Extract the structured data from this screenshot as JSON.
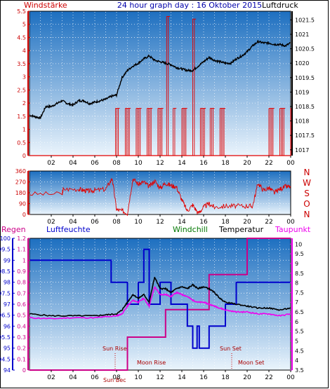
{
  "header": {
    "left_label": "Windstärke",
    "title": "24 hour graph day : 16 Oktober 2015",
    "right_label": "Luftdruck"
  },
  "compass": [
    "N",
    "W",
    "S",
    "O",
    "N"
  ],
  "legend": {
    "regen": "Regen",
    "luftfeuchte": "Luftfeuchte",
    "windchill": "Windchill",
    "temperatur": "Temperatur",
    "taupunkt": "Taupunkt"
  },
  "annotations": {
    "sun_rise": "Sun Rise",
    "moon_rise": "Moon Rise",
    "sun_set": "Sun Set",
    "moon_set": "Moon Set",
    "sun_bec": "Sun Bec"
  },
  "colors": {
    "wind": "#e00000",
    "pressure": "#000000",
    "humidity": "#0000cc",
    "dewpoint": "#ee00ee",
    "windchill": "#007700",
    "rain": "#cc0088",
    "grid_dots": "#ffffff",
    "axis_left_top": "#cc0000",
    "axis_right_top": "#000000",
    "bg_top": "#2070c0",
    "bg_bottom": "#e6f2fb"
  },
  "chart_data": [
    {
      "type": "line",
      "name": "wind-pressure",
      "x_ticks": [
        "02",
        "04",
        "06",
        "08",
        "10",
        "12",
        "14",
        "16",
        "18",
        "20",
        "22",
        "00"
      ],
      "xlim": [
        0,
        24
      ],
      "y_left_ticks": [
        "0",
        "0.5",
        "1",
        "1.5",
        "2",
        "2.5",
        "3",
        "3.5",
        "4",
        "4.5",
        "5",
        "5.5"
      ],
      "y_left_lim": [
        0,
        5.5
      ],
      "y_right_ticks": [
        "1017",
        "1017.5",
        "1018",
        "1018.5",
        "1019",
        "1019.5",
        "1020",
        "1020.5",
        "1021",
        "1021.5"
      ],
      "y_right_lim": [
        1016.8,
        1021.8
      ],
      "series": [
        {
          "axis": "right",
          "x": [
            0,
            0.5,
            1,
            1.5,
            2,
            2.5,
            3,
            3.5,
            4,
            4.5,
            5,
            5.5,
            6,
            6.5,
            7,
            7.5,
            8,
            8.5,
            9,
            9.5,
            10,
            10.5,
            11,
            11.5,
            12,
            12.5,
            13,
            13.5,
            14,
            14.5,
            15,
            15.5,
            16,
            16.5,
            17,
            17.5,
            18,
            18.5,
            19,
            19.5,
            20,
            20.5,
            21,
            21.5,
            22,
            22.5,
            23,
            23.5,
            24
          ],
          "y": [
            1018.2,
            1018.15,
            1018.1,
            1018.5,
            1018.5,
            1018.6,
            1018.7,
            1018.6,
            1018.55,
            1018.7,
            1018.7,
            1018.6,
            1018.65,
            1018.7,
            1018.75,
            1018.85,
            1018.9,
            1019.5,
            1019.75,
            1019.9,
            1020,
            1020.15,
            1020.25,
            1020.1,
            1020.05,
            1020,
            1019.95,
            1019.85,
            1019.8,
            1019.75,
            1019.75,
            1019.9,
            1020.05,
            1020.2,
            1020.1,
            1020.05,
            1020,
            1020,
            1020.15,
            1020.25,
            1020.4,
            1020.6,
            1020.75,
            1020.7,
            1020.7,
            1020.65,
            1020.65,
            1020.6,
            1020.7
          ]
        },
        {
          "axis": "left",
          "x": [
            0,
            4.5,
            5.2,
            7.5,
            7.9,
            8.3,
            8.8,
            9.3,
            9.8,
            10.3,
            10.8,
            11.3,
            11.8,
            12.3,
            12.6,
            12.9,
            13.2,
            13.5,
            14.0,
            14.5,
            15.0,
            15.3,
            15.7,
            16.2,
            16.6,
            17.0,
            17.5,
            18.0,
            18.5,
            19.0,
            19.5,
            20.0,
            20.5,
            21.0,
            21.5,
            22.0,
            22.5,
            23.0,
            23.5,
            24
          ],
          "y": [
            0,
            0,
            0,
            0,
            1.8,
            0,
            1.8,
            0,
            1.8,
            0,
            1.8,
            0,
            1.8,
            0,
            5.3,
            0,
            1.8,
            0,
            1.8,
            0,
            5.2,
            0,
            1.8,
            0,
            1.8,
            0,
            1.8,
            0,
            0,
            0,
            0,
            0,
            0,
            0,
            0,
            1.8,
            0,
            1.8,
            0,
            1.8
          ]
        }
      ]
    },
    {
      "type": "line",
      "name": "wind-direction",
      "x_ticks": [
        "02",
        "04",
        "06",
        "08",
        "10",
        "12",
        "14",
        "16",
        "18",
        "20",
        "22",
        "00"
      ],
      "xlim": [
        0,
        24
      ],
      "y_ticks": [
        "0",
        "90",
        "180",
        "270",
        "360"
      ],
      "ylim": [
        0,
        360
      ],
      "series": [
        {
          "x": [
            0,
            3,
            3.1,
            4.5,
            5,
            5.5,
            6,
            7,
            7.6,
            8,
            8.5,
            9,
            9.5,
            10,
            10.5,
            11,
            11.5,
            12,
            12.5,
            13,
            13.5,
            14,
            14.5,
            15,
            15.5,
            16,
            16.5,
            17,
            18,
            19,
            20,
            20.5,
            21,
            21.5,
            22,
            22.5,
            23,
            23.5,
            24
          ],
          "y": [
            170,
            170,
            210,
            210,
            200,
            195,
            200,
            210,
            300,
            40,
            30,
            10,
            300,
            250,
            270,
            230,
            280,
            220,
            260,
            240,
            230,
            120,
            30,
            80,
            10,
            60,
            90,
            60,
            70,
            70,
            70,
            70,
            260,
            200,
            220,
            180,
            210,
            230,
            230
          ]
        }
      ]
    },
    {
      "type": "line",
      "name": "temperature-humidity",
      "x_ticks": [
        "02",
        "04",
        "06",
        "08",
        "10",
        "12",
        "14",
        "16",
        "18",
        "20",
        "22",
        "00"
      ],
      "xlim": [
        0,
        24
      ],
      "y_humidity_ticks": [
        "94",
        "94.5",
        "95",
        "95.5",
        "96",
        "96.5",
        "97",
        "97.5",
        "98",
        "98.5",
        "99",
        "99.5",
        "100"
      ],
      "y_humidity_lim": [
        94,
        100
      ],
      "y_rain_ticks": [
        "0",
        "0.1",
        "0.2",
        "0.3",
        "0.4",
        "0.5",
        "0.6",
        "0.7",
        "0.8",
        "0.9",
        "1",
        "1.1",
        "1.2"
      ],
      "y_rain_lim": [
        0,
        1.2
      ],
      "y_temp_ticks": [
        "3.5",
        "4",
        "4.5",
        "5",
        "5.5",
        "6",
        "6.5",
        "7",
        "7.5",
        "8",
        "8.5",
        "9",
        "9.5",
        "10"
      ],
      "y_temp_lim": [
        3.5,
        10.3
      ],
      "series": [
        {
          "axis": "humidity",
          "x": [
            0,
            7.5,
            7.5,
            9,
            9,
            10,
            10,
            10.5,
            10.5,
            11,
            11,
            12,
            12,
            13,
            13,
            14.5,
            14.5,
            15,
            15,
            15.4,
            15.4,
            15.6,
            15.6,
            16.5,
            16.5,
            18,
            18,
            19,
            19,
            22.5,
            22.5,
            24
          ],
          "y": [
            99,
            99,
            98,
            98,
            97,
            97,
            98,
            98,
            99.5,
            99.5,
            97,
            97,
            98,
            98,
            97,
            97,
            96,
            96,
            95,
            95,
            96,
            96,
            95,
            95,
            96,
            96,
            97,
            97,
            98,
            98,
            98,
            98
          ]
        },
        {
          "axis": "rain",
          "x": [
            0,
            9,
            9,
            12.5,
            12.5,
            16.5,
            16.5,
            18.5,
            18.5,
            20,
            20,
            24
          ],
          "y": [
            0,
            0,
            0.3,
            0.3,
            0.55,
            0.55,
            0.87,
            0.87,
            0.87,
            0.87,
            1.2,
            1.2
          ]
        },
        {
          "axis": "temp",
          "x": [
            0,
            2,
            4,
            6,
            7,
            8,
            8.5,
            9,
            9.5,
            10,
            10.5,
            11,
            11.5,
            12,
            12.5,
            13,
            13.5,
            14,
            14.5,
            15,
            15.5,
            16,
            16.5,
            17,
            17.5,
            18,
            19,
            20,
            21,
            22,
            23,
            24
          ],
          "y": [
            6.4,
            6.3,
            6.3,
            6.3,
            6.35,
            6.4,
            6.6,
            7.0,
            7.4,
            7.2,
            7.4,
            7.0,
            8.3,
            7.7,
            7.7,
            7.5,
            7.7,
            7.8,
            7.7,
            7.9,
            7.7,
            7.8,
            7.7,
            7.5,
            7.2,
            7.0,
            6.9,
            6.8,
            6.7,
            6.7,
            6.6,
            6.7
          ]
        },
        {
          "axis": "temp",
          "x": [
            0,
            2,
            4,
            6,
            7,
            8,
            8.5,
            9,
            9.5,
            10,
            10.5,
            11,
            11.5,
            12,
            12.5,
            13,
            13.5,
            14,
            14.5,
            15,
            15.5,
            16,
            16.5,
            17,
            17.5,
            18,
            19,
            20,
            21,
            22,
            23,
            24
          ],
          "y": [
            6.2,
            6.15,
            6.2,
            6.2,
            6.25,
            6.3,
            6.4,
            6.8,
            7.1,
            7.0,
            7.2,
            6.8,
            7.8,
            7.4,
            7.4,
            7.3,
            7.5,
            7.4,
            7.3,
            7.1,
            7.0,
            7.0,
            6.9,
            6.8,
            6.7,
            6.6,
            6.5,
            6.5,
            6.4,
            6.4,
            6.3,
            6.4
          ]
        }
      ]
    }
  ]
}
